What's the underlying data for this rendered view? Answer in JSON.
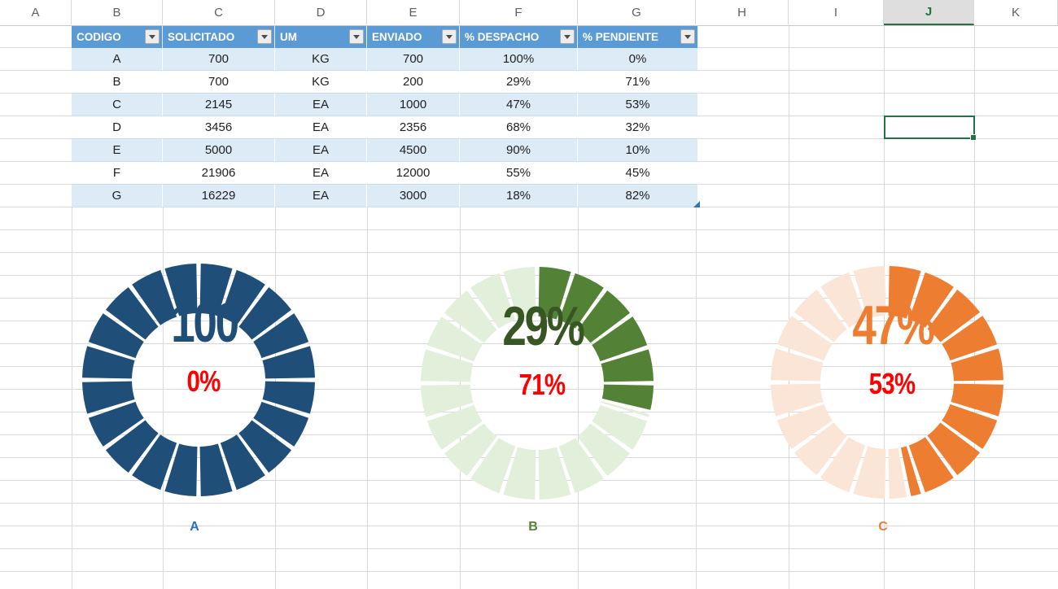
{
  "sheet": {
    "column_letters": [
      "A",
      "B",
      "C",
      "D",
      "E",
      "F",
      "G",
      "H",
      "I",
      "J",
      "K"
    ],
    "selected_column": "J"
  },
  "table": {
    "headers": [
      "CODIGO",
      "SOLICITADO",
      "UM",
      "ENVIADO",
      "% DESPACHO",
      "% PENDIENTE"
    ],
    "rows": [
      [
        "A",
        "700",
        "KG",
        "700",
        "100%",
        "0%"
      ],
      [
        "B",
        "700",
        "KG",
        "200",
        "29%",
        "71%"
      ],
      [
        "C",
        "2145",
        "EA",
        "1000",
        "47%",
        "53%"
      ],
      [
        "D",
        "3456",
        "EA",
        "2356",
        "68%",
        "32%"
      ],
      [
        "E",
        "5000",
        "EA",
        "4500",
        "90%",
        "10%"
      ],
      [
        "F",
        "21906",
        "EA",
        "12000",
        "55%",
        "45%"
      ],
      [
        "G",
        "16229",
        "EA",
        "3000",
        "18%",
        "82%"
      ]
    ]
  },
  "chart_data": [
    {
      "type": "pie",
      "subtype": "segmented-doughnut",
      "title": "A",
      "categories": [
        "% DESPACHO",
        "% PENDIENTE"
      ],
      "values": [
        100,
        0
      ],
      "segments": 20,
      "center_label": "100",
      "center_sublabel": "0%",
      "colors": {
        "filled": "#1F4E79",
        "empty": null,
        "center_label": "#1F4E79",
        "center_sublabel": "#FF0000",
        "title": "#2272C4"
      }
    },
    {
      "type": "pie",
      "subtype": "segmented-doughnut",
      "title": "B",
      "categories": [
        "% DESPACHO",
        "% PENDIENTE"
      ],
      "values": [
        29,
        71
      ],
      "segments": 20,
      "center_label": "29%",
      "center_sublabel": "71%",
      "colors": {
        "filled": "#538135",
        "empty": "#E2EFDA",
        "center_label": "#375623",
        "center_sublabel": "#FF0000",
        "title": "#538135"
      }
    },
    {
      "type": "pie",
      "subtype": "segmented-doughnut",
      "title": "C",
      "categories": [
        "% DESPACHO",
        "% PENDIENTE"
      ],
      "values": [
        47,
        53
      ],
      "segments": 20,
      "center_label": "47%",
      "center_sublabel": "53%",
      "colors": {
        "filled": "#ED7D31",
        "empty": "#FBE5D6",
        "center_label": "#ED7D31",
        "center_sublabel": "#FF0000",
        "title": "#ED7D31"
      }
    }
  ],
  "colors": {
    "table_header_bg": "#5B9BD5",
    "table_header_text": "#FFFFFF",
    "banded_row_bg": "#DDEBF7",
    "gridline": "#D9D9D9",
    "active_cell_border": "#217346",
    "selected_column_text": "#217346"
  }
}
